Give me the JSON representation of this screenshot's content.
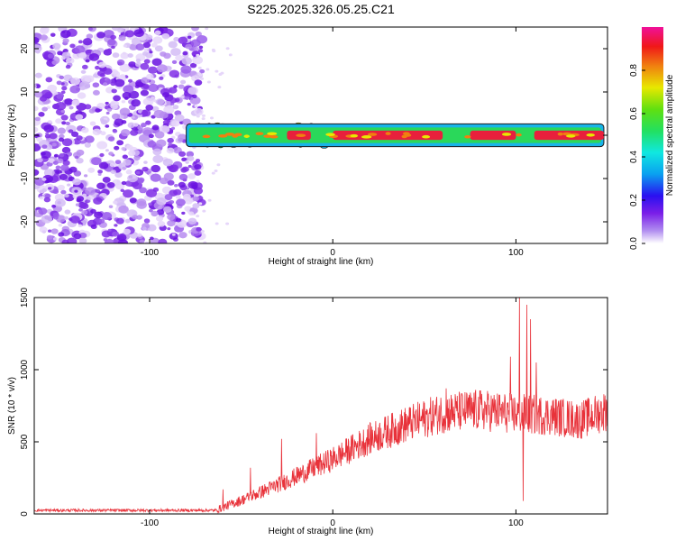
{
  "title": "S225.2025.326.05.25.C21",
  "chart_data": [
    {
      "type": "heatmap",
      "name": "spectrogram",
      "xlabel": "Height of straight line (km)",
      "ylabel": "Frequency (Hz)",
      "xlim": [
        -163,
        150
      ],
      "ylim": [
        -25,
        25
      ],
      "xticks": [
        -100,
        0,
        100
      ],
      "yticks": [
        -20,
        -10,
        0,
        10,
        20
      ],
      "noise_region_x": [
        -163,
        -75
      ],
      "signal_band": {
        "x_start": -80,
        "x_end": 148,
        "center_hz": 0,
        "half_width_hz": 1.2
      },
      "strong_segments_x": [
        [
          -25,
          -12
        ],
        [
          0,
          60
        ],
        [
          75,
          100
        ],
        [
          110,
          148
        ]
      ],
      "disturbance_x": [
        [
          -70,
          -45
        ],
        [
          -40,
          0
        ],
        [
          85,
          115
        ]
      ],
      "colorbar": {
        "label": "Normalized spectral amplitude",
        "range": [
          0,
          1
        ],
        "ticks": [
          0.0,
          0.2,
          0.4,
          0.6,
          0.8
        ],
        "tick_labels": [
          "0.0",
          "0.2",
          "0.4",
          "0.6",
          "0.8"
        ]
      },
      "colors": {
        "noise": "#8a3cf0",
        "band_core": "#e8203c",
        "band_mid": "#2ad85a",
        "band_edge": "#18b4e8",
        "band_outline": "#1a1a1a"
      }
    },
    {
      "type": "line",
      "name": "snr",
      "xlabel": "Height of straight line (km)",
      "ylabel": "SNR (10 * v/v)",
      "xlim": [
        -163,
        150
      ],
      "ylim": [
        0,
        1500
      ],
      "xticks": [
        -100,
        0,
        100
      ],
      "yticks": [
        0,
        500,
        1000,
        1500
      ],
      "color": "#e8323a",
      "baseline_x": [
        -163,
        -63
      ],
      "baseline_y": 25,
      "trend": [
        {
          "x": -63,
          "y": 30
        },
        {
          "x": -45,
          "y": 120
        },
        {
          "x": -25,
          "y": 230
        },
        {
          "x": 0,
          "y": 380
        },
        {
          "x": 20,
          "y": 520
        },
        {
          "x": 40,
          "y": 620
        },
        {
          "x": 60,
          "y": 700
        },
        {
          "x": 80,
          "y": 720
        },
        {
          "x": 95,
          "y": 700
        },
        {
          "x": 120,
          "y": 680
        },
        {
          "x": 135,
          "y": 650
        },
        {
          "x": 150,
          "y": 720
        }
      ],
      "spikes": [
        {
          "x": -60,
          "y": 170
        },
        {
          "x": -45,
          "y": 320
        },
        {
          "x": -28,
          "y": 520
        },
        {
          "x": -9,
          "y": 560
        },
        {
          "x": 62,
          "y": 870
        },
        {
          "x": 97,
          "y": 1090
        },
        {
          "x": 102,
          "y": 1500
        },
        {
          "x": 104,
          "y": 90
        },
        {
          "x": 106,
          "y": 1450
        },
        {
          "x": 108,
          "y": 1350
        },
        {
          "x": 111,
          "y": 1050
        }
      ]
    }
  ]
}
